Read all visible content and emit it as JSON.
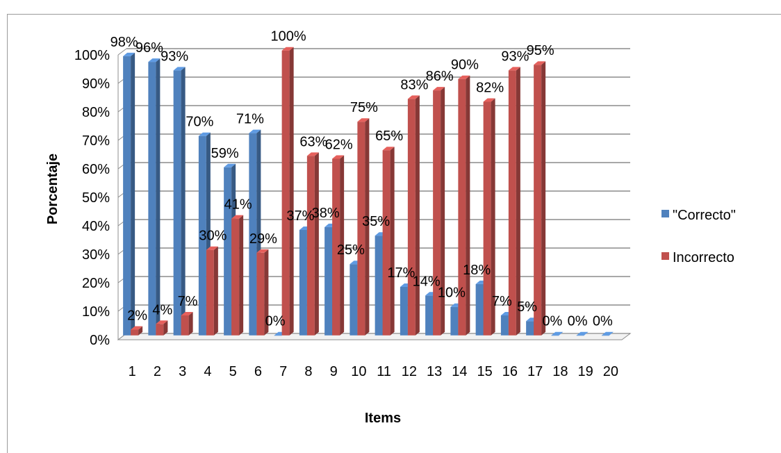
{
  "chart_data": {
    "type": "bar",
    "title": "",
    "xlabel": "Items",
    "ylabel": "Porcentaje",
    "ylim": [
      0,
      100
    ],
    "y_ticks": [
      "0%",
      "10%",
      "20%",
      "30%",
      "40%",
      "50%",
      "60%",
      "70%",
      "80%",
      "90%",
      "100%"
    ],
    "categories": [
      "1",
      "2",
      "3",
      "4",
      "5",
      "6",
      "7",
      "8",
      "9",
      "10",
      "11",
      "12",
      "13",
      "14",
      "15",
      "16",
      "17",
      "18",
      "19",
      "20"
    ],
    "series": [
      {
        "name": "\"Correcto\"",
        "color": "#4F81BD",
        "values": [
          98,
          96,
          93,
          70,
          59,
          71,
          0,
          37,
          38,
          25,
          35,
          17,
          14,
          10,
          18,
          7,
          5,
          0,
          0,
          0
        ],
        "labels": [
          "98%",
          "96%",
          "93%",
          "70%",
          "59%",
          "71%",
          "0%",
          "37%",
          "38%",
          "25%",
          "35%",
          "17%",
          "14%",
          "10%",
          "18%",
          "7%",
          "5%",
          "0%",
          "0%",
          "0%"
        ]
      },
      {
        "name": "Incorrecto",
        "color": "#C0504D",
        "values": [
          2,
          4,
          7,
          30,
          41,
          29,
          100,
          63,
          62,
          75,
          65,
          83,
          86,
          90,
          82,
          93,
          95,
          null,
          null,
          null
        ],
        "labels": [
          "2%",
          "4%",
          "7%",
          "30%",
          "41%",
          "29%",
          "100%",
          "63%",
          "62%",
          "75%",
          "65%",
          "83%",
          "86%",
          "90%",
          "82%",
          "93%",
          "95%",
          "",
          "",
          ""
        ]
      }
    ],
    "grid": true,
    "legend": "right",
    "style": "3d-clustered-columns"
  }
}
